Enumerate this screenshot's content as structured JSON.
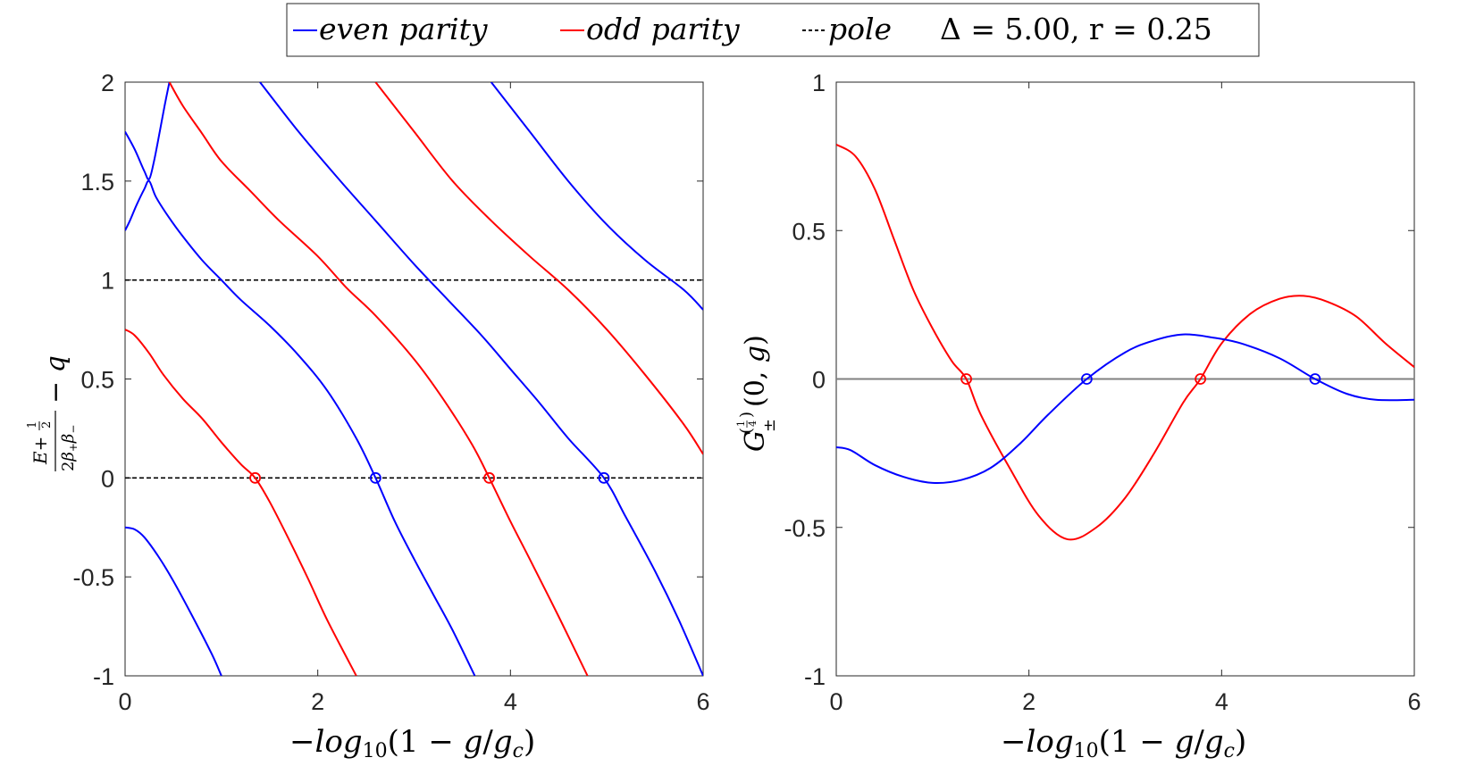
{
  "legend": {
    "even_label": "even parity",
    "odd_label": "odd parity",
    "pole_label": "pole",
    "params_label": "Δ = 5.00, r = 0.25"
  },
  "colors": {
    "even": "#0000ff",
    "odd": "#ff0000",
    "pole": "#000000",
    "zero_line": "#808080"
  },
  "chart_data": [
    {
      "type": "line",
      "title": "",
      "xlabel": "−log10(1 − g/gc)",
      "ylabel": "(E + 1/2)/(2β+β−) − q",
      "xlim": [
        0,
        6
      ],
      "ylim": [
        -1,
        2
      ],
      "xticks": [
        0,
        2,
        4,
        6
      ],
      "xtick_labels": [
        "0",
        "2",
        "4",
        "6"
      ],
      "yticks": [
        -1,
        -0.5,
        0,
        0.5,
        1,
        1.5,
        2
      ],
      "ytick_labels": [
        "-1",
        "-0.5",
        "0",
        "0.5",
        "1",
        "1.5",
        "2"
      ],
      "pole_lines": [
        0,
        1
      ],
      "series": [
        {
          "name": "even parity",
          "color": "#0000ff",
          "points": [
            [
              0,
              1.75
            ],
            [
              0.1,
              1.66
            ],
            [
              0.2,
              1.55
            ],
            [
              0.25,
              1.51
            ],
            [
              0.3,
              1.6
            ],
            [
              0.36,
              1.75
            ],
            [
              0.41,
              1.88
            ],
            [
              0.46,
              2.0
            ]
          ]
        },
        {
          "name": "even parity",
          "color": "#0000ff",
          "points": [
            [
              0,
              1.25
            ],
            [
              0.05,
              1.3
            ],
            [
              0.12,
              1.38
            ],
            [
              0.2,
              1.46
            ],
            [
              0.25,
              1.5
            ],
            [
              0.32,
              1.42
            ],
            [
              0.45,
              1.32
            ],
            [
              0.6,
              1.22
            ],
            [
              0.8,
              1.1
            ],
            [
              1.0,
              1.0
            ],
            [
              1.2,
              0.9
            ],
            [
              1.5,
              0.77
            ],
            [
              1.8,
              0.62
            ],
            [
              2.1,
              0.44
            ],
            [
              2.4,
              0.2
            ],
            [
              2.6,
              0.0
            ],
            [
              2.8,
              -0.22
            ],
            [
              3.0,
              -0.41
            ],
            [
              3.2,
              -0.59
            ],
            [
              3.4,
              -0.77
            ],
            [
              3.63,
              -1.0
            ]
          ]
        },
        {
          "name": "even parity",
          "color": "#0000ff",
          "points": [
            [
              1.4,
              2.0
            ],
            [
              1.8,
              1.75
            ],
            [
              2.2,
              1.52
            ],
            [
              2.6,
              1.3
            ],
            [
              3.0,
              1.08
            ],
            [
              3.35,
              0.9
            ],
            [
              3.7,
              0.72
            ],
            [
              4.0,
              0.55
            ],
            [
              4.3,
              0.38
            ],
            [
              4.6,
              0.2
            ],
            [
              4.97,
              0.0
            ],
            [
              5.2,
              -0.2
            ],
            [
              5.5,
              -0.47
            ],
            [
              5.75,
              -0.72
            ],
            [
              6.0,
              -1.0
            ]
          ]
        },
        {
          "name": "even parity",
          "color": "#0000ff",
          "points": [
            [
              3.8,
              2.0
            ],
            [
              4.2,
              1.75
            ],
            [
              4.6,
              1.5
            ],
            [
              5.0,
              1.28
            ],
            [
              5.4,
              1.1
            ],
            [
              5.8,
              0.95
            ],
            [
              6.0,
              0.85
            ]
          ]
        },
        {
          "name": "even parity",
          "color": "#0000ff",
          "points": [
            [
              0,
              -0.25
            ],
            [
              0.1,
              -0.26
            ],
            [
              0.2,
              -0.3
            ],
            [
              0.35,
              -0.4
            ],
            [
              0.5,
              -0.52
            ],
            [
              0.7,
              -0.7
            ],
            [
              0.9,
              -0.89
            ],
            [
              1.0,
              -1.0
            ]
          ]
        },
        {
          "name": "odd parity",
          "color": "#ff0000",
          "points": [
            [
              0,
              0.75
            ],
            [
              0.1,
              0.72
            ],
            [
              0.25,
              0.63
            ],
            [
              0.4,
              0.52
            ],
            [
              0.6,
              0.4
            ],
            [
              0.8,
              0.3
            ],
            [
              1.0,
              0.18
            ],
            [
              1.2,
              0.07
            ],
            [
              1.35,
              0.0
            ],
            [
              1.5,
              -0.12
            ],
            [
              1.7,
              -0.31
            ],
            [
              1.9,
              -0.51
            ],
            [
              2.1,
              -0.72
            ],
            [
              2.4,
              -1.0
            ]
          ]
        },
        {
          "name": "odd parity",
          "color": "#ff0000",
          "points": [
            [
              0.46,
              2.0
            ],
            [
              0.6,
              1.88
            ],
            [
              0.8,
              1.74
            ],
            [
              1.0,
              1.6
            ],
            [
              1.3,
              1.45
            ],
            [
              1.6,
              1.3
            ],
            [
              2.0,
              1.12
            ],
            [
              2.3,
              0.96
            ],
            [
              2.6,
              0.82
            ],
            [
              3.0,
              0.6
            ],
            [
              3.3,
              0.4
            ],
            [
              3.6,
              0.17
            ],
            [
              3.78,
              0.0
            ],
            [
              4.0,
              -0.22
            ],
            [
              4.2,
              -0.41
            ],
            [
              4.5,
              -0.7
            ],
            [
              4.8,
              -1.0
            ]
          ]
        },
        {
          "name": "odd parity",
          "color": "#ff0000",
          "points": [
            [
              2.6,
              2.0
            ],
            [
              3.0,
              1.75
            ],
            [
              3.4,
              1.5
            ],
            [
              3.8,
              1.3
            ],
            [
              4.2,
              1.12
            ],
            [
              4.6,
              0.95
            ],
            [
              5.0,
              0.75
            ],
            [
              5.4,
              0.52
            ],
            [
              5.8,
              0.27
            ],
            [
              6.0,
              0.12
            ]
          ]
        }
      ],
      "zero_markers": [
        {
          "x": 1.35,
          "y": 0,
          "color": "#ff0000"
        },
        {
          "x": 2.6,
          "y": 0,
          "color": "#0000ff"
        },
        {
          "x": 3.78,
          "y": 0,
          "color": "#ff0000"
        },
        {
          "x": 4.97,
          "y": 0,
          "color": "#0000ff"
        }
      ]
    },
    {
      "type": "line",
      "title": "",
      "xlabel": "−log10(1 − g/gc)",
      "ylabel": "G±^(1/4)(0, g)",
      "xlim": [
        0,
        6
      ],
      "ylim": [
        -1,
        1
      ],
      "xticks": [
        0,
        2,
        4,
        6
      ],
      "xtick_labels": [
        "0",
        "2",
        "4",
        "6"
      ],
      "yticks": [
        -1,
        -0.5,
        0,
        0.5,
        1
      ],
      "ytick_labels": [
        "-1",
        "-0.5",
        "0",
        "0.5",
        "1"
      ],
      "zero_line": 0,
      "series": [
        {
          "name": "odd parity",
          "color": "#ff0000",
          "points": [
            [
              0,
              0.79
            ],
            [
              0.2,
              0.75
            ],
            [
              0.4,
              0.64
            ],
            [
              0.6,
              0.47
            ],
            [
              0.8,
              0.3
            ],
            [
              1.0,
              0.17
            ],
            [
              1.2,
              0.06
            ],
            [
              1.35,
              0.0
            ],
            [
              1.5,
              -0.12
            ],
            [
              1.8,
              -0.3
            ],
            [
              2.1,
              -0.46
            ],
            [
              2.4,
              -0.54
            ],
            [
              2.7,
              -0.5
            ],
            [
              3.0,
              -0.4
            ],
            [
              3.3,
              -0.25
            ],
            [
              3.6,
              -0.08
            ],
            [
              3.78,
              0.0
            ],
            [
              4.0,
              0.12
            ],
            [
              4.3,
              0.22
            ],
            [
              4.6,
              0.27
            ],
            [
              4.85,
              0.28
            ],
            [
              5.1,
              0.26
            ],
            [
              5.4,
              0.21
            ],
            [
              5.7,
              0.12
            ],
            [
              6.0,
              0.04
            ]
          ]
        },
        {
          "name": "even parity",
          "color": "#0000ff",
          "points": [
            [
              0,
              -0.23
            ],
            [
              0.15,
              -0.24
            ],
            [
              0.4,
              -0.29
            ],
            [
              0.7,
              -0.33
            ],
            [
              1.0,
              -0.35
            ],
            [
              1.3,
              -0.34
            ],
            [
              1.6,
              -0.3
            ],
            [
              1.9,
              -0.22
            ],
            [
              2.2,
              -0.12
            ],
            [
              2.6,
              0.0
            ],
            [
              3.0,
              0.09
            ],
            [
              3.3,
              0.13
            ],
            [
              3.6,
              0.15
            ],
            [
              3.9,
              0.14
            ],
            [
              4.2,
              0.12
            ],
            [
              4.6,
              0.07
            ],
            [
              4.97,
              0.0
            ],
            [
              5.3,
              -0.05
            ],
            [
              5.6,
              -0.07
            ],
            [
              6.0,
              -0.07
            ]
          ]
        }
      ],
      "zero_markers": [
        {
          "x": 1.35,
          "y": 0,
          "color": "#ff0000"
        },
        {
          "x": 2.6,
          "y": 0,
          "color": "#0000ff"
        },
        {
          "x": 3.78,
          "y": 0,
          "color": "#ff0000"
        },
        {
          "x": 4.97,
          "y": 0,
          "color": "#0000ff"
        }
      ]
    }
  ]
}
